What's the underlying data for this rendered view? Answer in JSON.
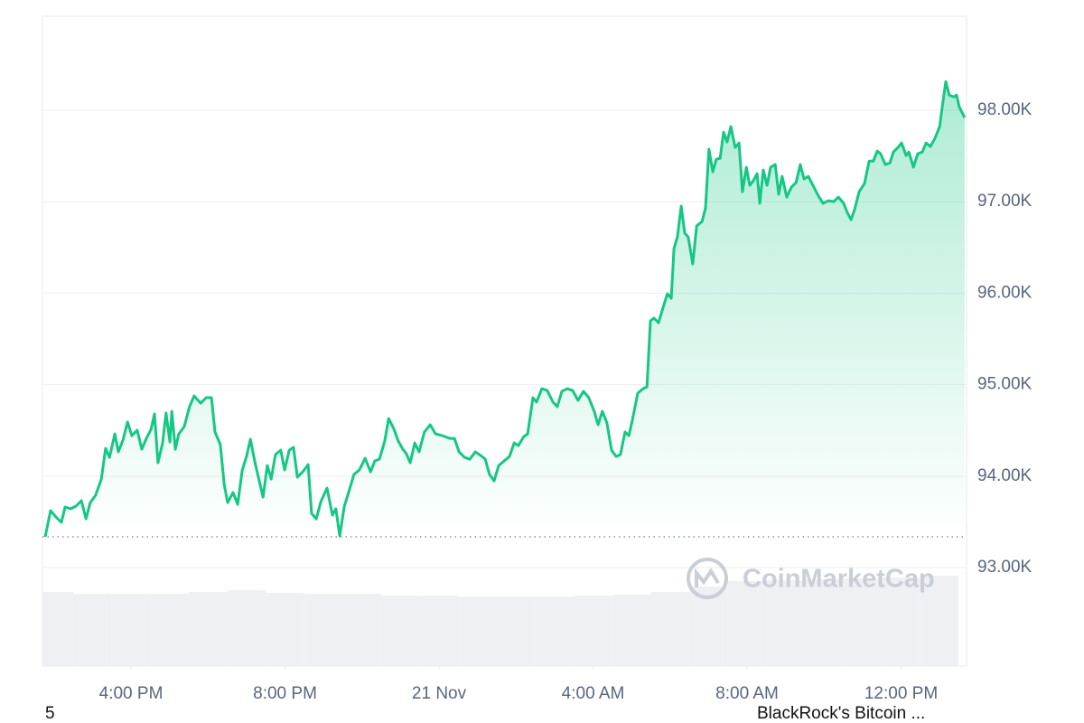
{
  "chart_data": {
    "type": "line",
    "x": [
      13.77,
      13.91,
      14.05,
      14.19,
      14.29,
      14.43,
      14.57,
      14.71,
      14.83,
      14.94,
      15.08,
      15.23,
      15.34,
      15.44,
      15.58,
      15.67,
      15.79,
      15.91,
      16.02,
      16.16,
      16.28,
      16.4,
      16.52,
      16.61,
      16.7,
      16.82,
      16.91,
      17.01,
      17.06,
      17.15,
      17.24,
      17.38,
      17.52,
      17.64,
      17.81,
      17.95,
      18.09,
      18.18,
      18.32,
      18.42,
      18.51,
      18.65,
      18.77,
      18.89,
      19.0,
      19.1,
      19.21,
      19.33,
      19.43,
      19.54,
      19.64,
      19.75,
      19.89,
      19.99,
      20.11,
      20.22,
      20.32,
      20.46,
      20.6,
      20.69,
      20.81,
      20.93,
      21.09,
      21.23,
      21.32,
      21.42,
      21.54,
      21.65,
      21.79,
      21.93,
      22.08,
      22.22,
      22.33,
      22.45,
      22.59,
      22.69,
      22.83,
      22.94,
      23.06,
      23.15,
      23.25,
      23.37,
      23.48,
      23.62,
      23.77,
      23.91,
      24.09,
      24.28,
      24.4,
      24.52,
      24.66,
      24.8,
      24.94,
      25.08,
      25.2,
      25.31,
      25.43,
      25.55,
      25.69,
      25.83,
      25.95,
      26.06,
      26.2,
      26.3,
      26.44,
      26.53,
      26.67,
      26.81,
      26.96,
      27.07,
      27.19,
      27.33,
      27.47,
      27.61,
      27.75,
      27.89,
      28.03,
      28.13,
      28.24,
      28.36,
      28.48,
      28.6,
      28.71,
      28.83,
      28.93,
      29.02,
      29.16,
      29.3,
      29.4,
      29.49,
      29.58,
      29.7,
      29.82,
      29.93,
      30.03,
      30.1,
      30.19,
      30.29,
      30.38,
      30.47,
      30.59,
      30.69,
      30.83,
      30.92,
      31.01,
      31.11,
      31.2,
      31.3,
      31.39,
      31.48,
      31.58,
      31.69,
      31.79,
      31.88,
      31.98,
      32.07,
      32.16,
      32.26,
      32.33,
      32.42,
      32.52,
      32.61,
      32.73,
      32.82,
      32.91,
      33.03,
      33.15,
      33.27,
      33.38,
      33.48,
      33.59,
      33.71,
      33.83,
      33.97,
      34.11,
      34.25,
      34.37,
      34.51,
      34.6,
      34.7,
      34.79,
      34.91,
      35.05,
      35.17,
      35.28,
      35.38,
      35.47,
      35.59,
      35.71,
      35.8,
      35.94,
      36.01,
      36.13,
      36.2,
      36.32,
      36.43,
      36.55,
      36.65,
      36.76,
      36.88,
      37.0,
      37.07,
      37.16,
      37.25,
      37.37,
      37.44,
      37.51,
      37.65
    ],
    "series": [
      {
        "color": "#16c784",
        "values": [
          93336,
          93622,
          93553,
          93494,
          93662,
          93642,
          93672,
          93731,
          93533,
          93711,
          93790,
          93968,
          94304,
          94205,
          94462,
          94265,
          94393,
          94591,
          94442,
          94501,
          94294,
          94413,
          94511,
          94680,
          94146,
          94363,
          94690,
          94373,
          94709,
          94294,
          94462,
          94541,
          94759,
          94877,
          94798,
          94858,
          94858,
          94482,
          94344,
          93909,
          93711,
          93820,
          93691,
          94067,
          94215,
          94403,
          94166,
          93948,
          93770,
          94116,
          93968,
          94235,
          94284,
          94067,
          94284,
          94314,
          93988,
          94047,
          94126,
          93593,
          93533,
          93721,
          93869,
          93573,
          93642,
          93346,
          93672,
          93820,
          94018,
          94067,
          94195,
          94047,
          94166,
          94185,
          94383,
          94630,
          94511,
          94383,
          94294,
          94245,
          94146,
          94363,
          94265,
          94482,
          94561,
          94462,
          94442,
          94412,
          94412,
          94265,
          94205,
          94185,
          94265,
          94225,
          94185,
          94018,
          93948,
          94116,
          94166,
          94215,
          94363,
          94333,
          94432,
          94462,
          94858,
          94808,
          94956,
          94936,
          94808,
          94759,
          94927,
          94956,
          94936,
          94828,
          94927,
          94858,
          94709,
          94561,
          94709,
          94580,
          94284,
          94215,
          94235,
          94482,
          94442,
          94610,
          94907,
          94956,
          94976,
          95697,
          95727,
          95677,
          95845,
          95994,
          95944,
          96488,
          96616,
          96952,
          96656,
          96616,
          96320,
          96735,
          96784,
          96932,
          97574,
          97326,
          97465,
          97475,
          97761,
          97653,
          97821,
          97594,
          97643,
          97110,
          97377,
          97179,
          97229,
          97308,
          96982,
          97347,
          97179,
          97377,
          97406,
          97081,
          97278,
          97051,
          97159,
          97209,
          97406,
          97249,
          97278,
          97179,
          97081,
          96982,
          97011,
          97001,
          97051,
          96982,
          96883,
          96804,
          96913,
          97110,
          97199,
          97445,
          97445,
          97554,
          97524,
          97406,
          97426,
          97544,
          97604,
          97643,
          97505,
          97544,
          97377,
          97524,
          97544,
          97643,
          97604,
          97693,
          97821,
          98038,
          98315,
          98166,
          98146,
          98166,
          98038,
          97919
        ]
      }
    ],
    "reference_line": 93336,
    "volume": {
      "color": "#eef0f3",
      "x": [
        14,
        15,
        16,
        17,
        18,
        19,
        20,
        21,
        22,
        23,
        24,
        25,
        26,
        27,
        28,
        29,
        30,
        31,
        32,
        33,
        34,
        35,
        36,
        37
      ],
      "values": [
        82,
        80,
        80,
        80,
        82,
        84,
        81,
        80,
        80,
        78,
        78,
        77,
        77,
        77,
        78,
        79,
        82,
        88,
        94,
        95,
        96,
        97,
        98,
        100
      ],
      "vlim": [
        0,
        120
      ]
    },
    "xlim": [
      13.7,
      37.7
    ],
    "xticks": [
      {
        "value": 16,
        "label": "4:00 PM"
      },
      {
        "value": 20,
        "label": "8:00 PM"
      },
      {
        "value": 24,
        "label": "21 Nov"
      },
      {
        "value": 28,
        "label": "4:00 AM"
      },
      {
        "value": 32,
        "label": "8:00 AM"
      },
      {
        "value": 36,
        "label": "12:00 PM"
      }
    ],
    "ylim": [
      91923,
      99028
    ],
    "yticks": [
      {
        "value": 93000,
        "label": "93.00K"
      },
      {
        "value": 94000,
        "label": "94.00K"
      },
      {
        "value": 95000,
        "label": "95.00K"
      },
      {
        "value": 96000,
        "label": "96.00K"
      },
      {
        "value": 97000,
        "label": "97.00K"
      },
      {
        "value": 98000,
        "label": "98.00K"
      }
    ],
    "grid": true,
    "watermark": "CoinMarketCap",
    "footer": {
      "left": "5",
      "right": "BlackRock's Bitcoin ..."
    }
  }
}
